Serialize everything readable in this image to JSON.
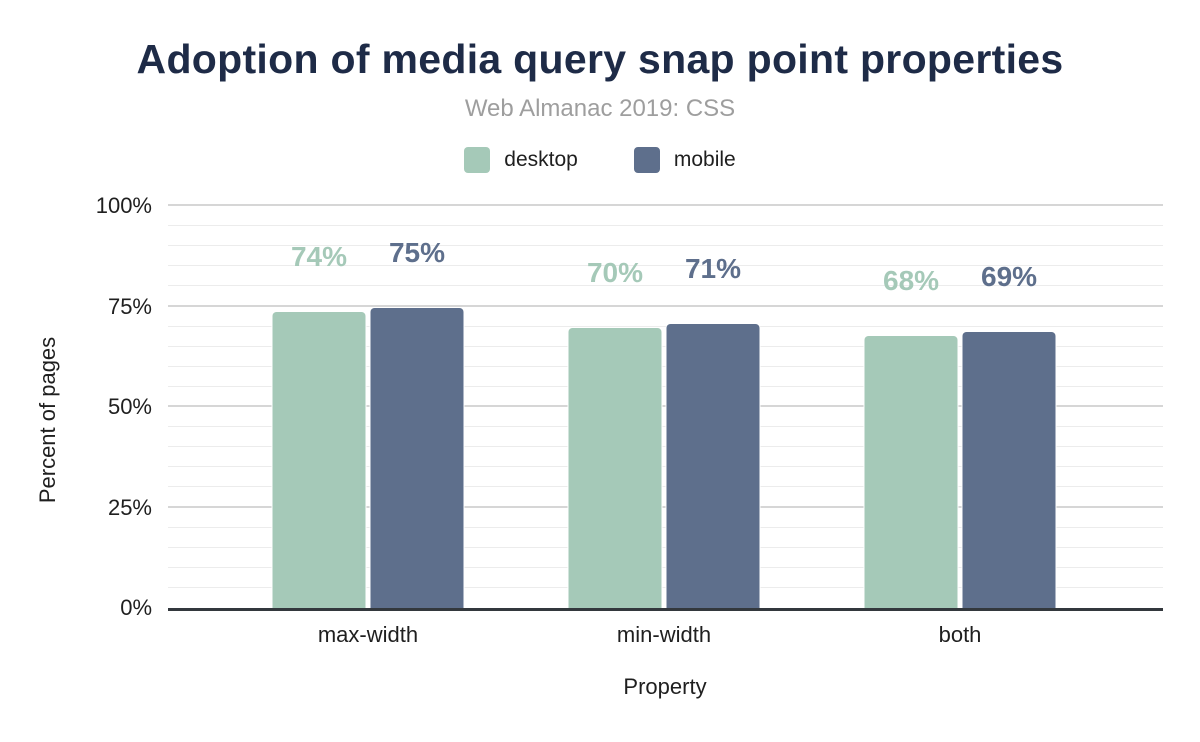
{
  "header": {
    "title": "Adoption of media query snap point properties",
    "subtitle": "Web Almanac 2019: CSS"
  },
  "colors": {
    "title": "#1e2b47",
    "subtitle": "#9e9e9e",
    "desktop": "#a5c9b8",
    "mobile": "#5e6f8c",
    "axis_text": "#1f1f1f",
    "baseline": "#33383d",
    "grid_major": "#d6d6d6",
    "grid_minor": "#ececec",
    "background": "#ffffff"
  },
  "chart_data": {
    "type": "bar",
    "title": "Adoption of media query snap point properties",
    "subtitle": "Web Almanac 2019: CSS",
    "categories": [
      "max-width",
      "min-width",
      "both"
    ],
    "series": [
      {
        "name": "desktop",
        "color": "#a5c9b8",
        "values": [
          74,
          70,
          68
        ],
        "labels": [
          "74%",
          "70%",
          "68%"
        ]
      },
      {
        "name": "mobile",
        "color": "#5e6f8c",
        "values": [
          75,
          71,
          69
        ],
        "labels": [
          "75%",
          "71%",
          "69%"
        ]
      }
    ],
    "xlabel": "Property",
    "ylabel": "Percent of pages",
    "ylim": [
      0,
      100
    ],
    "yticks": [
      {
        "value": 0,
        "label": "0%"
      },
      {
        "value": 25,
        "label": "25%"
      },
      {
        "value": 50,
        "label": "50%"
      },
      {
        "value": 75,
        "label": "75%"
      },
      {
        "value": 100,
        "label": "100%"
      }
    ],
    "grid": {
      "minor_step": 5,
      "major_step": 25
    },
    "legend_position": "top"
  }
}
